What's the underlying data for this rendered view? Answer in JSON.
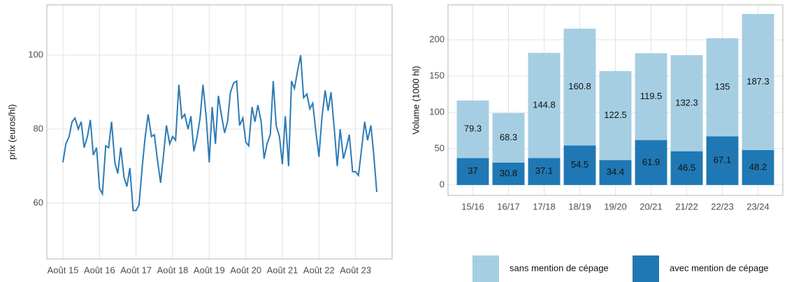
{
  "chart_data": [
    {
      "type": "line",
      "ylabel": "prix (euros/hl)",
      "color": "#2c7bb6",
      "grid": true,
      "xlim": [
        14.56,
        24.0
      ],
      "ylim": [
        44.9,
        113.6
      ],
      "yticks": [
        60,
        80,
        100
      ],
      "xticks": [
        {
          "value": 15,
          "label": "Août 15"
        },
        {
          "value": 16,
          "label": "Août 16"
        },
        {
          "value": 17,
          "label": "Août 17"
        },
        {
          "value": 18,
          "label": "Août 18"
        },
        {
          "value": 19,
          "label": "Août 19"
        },
        {
          "value": 20,
          "label": "Août 20"
        },
        {
          "value": 21,
          "label": "Août 21"
        },
        {
          "value": 22,
          "label": "Août 22"
        },
        {
          "value": 23,
          "label": "Août 23"
        }
      ],
      "x": [
        15.0,
        15.08,
        15.17,
        15.25,
        15.33,
        15.42,
        15.5,
        15.58,
        15.67,
        15.75,
        15.83,
        15.92,
        16.0,
        16.08,
        16.17,
        16.25,
        16.33,
        16.42,
        16.5,
        16.58,
        16.67,
        16.75,
        16.83,
        16.92,
        17.0,
        17.08,
        17.17,
        17.25,
        17.33,
        17.42,
        17.5,
        17.58,
        17.67,
        17.75,
        17.83,
        17.92,
        18.0,
        18.08,
        18.17,
        18.25,
        18.33,
        18.42,
        18.5,
        18.58,
        18.67,
        18.75,
        18.83,
        18.92,
        19.0,
        19.08,
        19.17,
        19.25,
        19.33,
        19.42,
        19.5,
        19.58,
        19.67,
        19.75,
        19.83,
        19.92,
        20.0,
        20.08,
        20.17,
        20.25,
        20.33,
        20.42,
        20.5,
        20.58,
        20.67,
        20.75,
        20.83,
        20.92,
        21.0,
        21.08,
        21.17,
        21.25,
        21.33,
        21.42,
        21.5,
        21.58,
        21.67,
        21.75,
        21.83,
        21.92,
        22.0,
        22.08,
        22.17,
        22.25,
        22.33,
        22.42,
        22.5,
        22.58,
        22.67,
        22.75,
        22.83,
        22.92,
        23.0,
        23.08,
        23.17,
        23.25,
        23.33,
        23.42,
        23.5,
        23.58
      ],
      "values": [
        71,
        76,
        78,
        82,
        83,
        80,
        82,
        75,
        78,
        82.5,
        73,
        75,
        64,
        62.5,
        75.5,
        75,
        82,
        71,
        68,
        75,
        67,
        64.5,
        69.5,
        58,
        58,
        59.5,
        70,
        78,
        84,
        78,
        78.5,
        72,
        65.5,
        73,
        81,
        76,
        78,
        77,
        92,
        83,
        84,
        80,
        83.5,
        74,
        78,
        83,
        92,
        83,
        71,
        86,
        76,
        89,
        84,
        79,
        82,
        90,
        92.5,
        93,
        81,
        83,
        76.5,
        75.5,
        86,
        82,
        86.5,
        82,
        72,
        76,
        78.5,
        93,
        81,
        78,
        70.5,
        83.5,
        70,
        93,
        91,
        96,
        100,
        88.5,
        89.5,
        85.5,
        87,
        79,
        72.5,
        83,
        90.5,
        85,
        90,
        80,
        70,
        80,
        72,
        75,
        78.5,
        68.5,
        68.5,
        67.5,
        75,
        82,
        77,
        81,
        73,
        63
      ]
    },
    {
      "type": "stacked_bar",
      "ylabel": "Volume (1000 hl)",
      "grid": true,
      "ylim": [
        -14.4,
        248
      ],
      "yticks": [
        0,
        50,
        100,
        150,
        200
      ],
      "categories": [
        "15/16",
        "16/17",
        "17/18",
        "18/19",
        "19/20",
        "20/21",
        "21/22",
        "22/23",
        "23/24"
      ],
      "series": [
        {
          "name": "avec mention de cépage",
          "color": "#1f78b4",
          "values": [
            37,
            30.8,
            37.1,
            54.5,
            34.4,
            61.9,
            46.5,
            67.1,
            48.2
          ]
        },
        {
          "name": "sans mention de cépage",
          "color": "#a6cee3",
          "values": [
            79.3,
            68.3,
            144.8,
            160.8,
            122.5,
            119.5,
            132.3,
            135,
            187.3
          ]
        }
      ]
    }
  ]
}
